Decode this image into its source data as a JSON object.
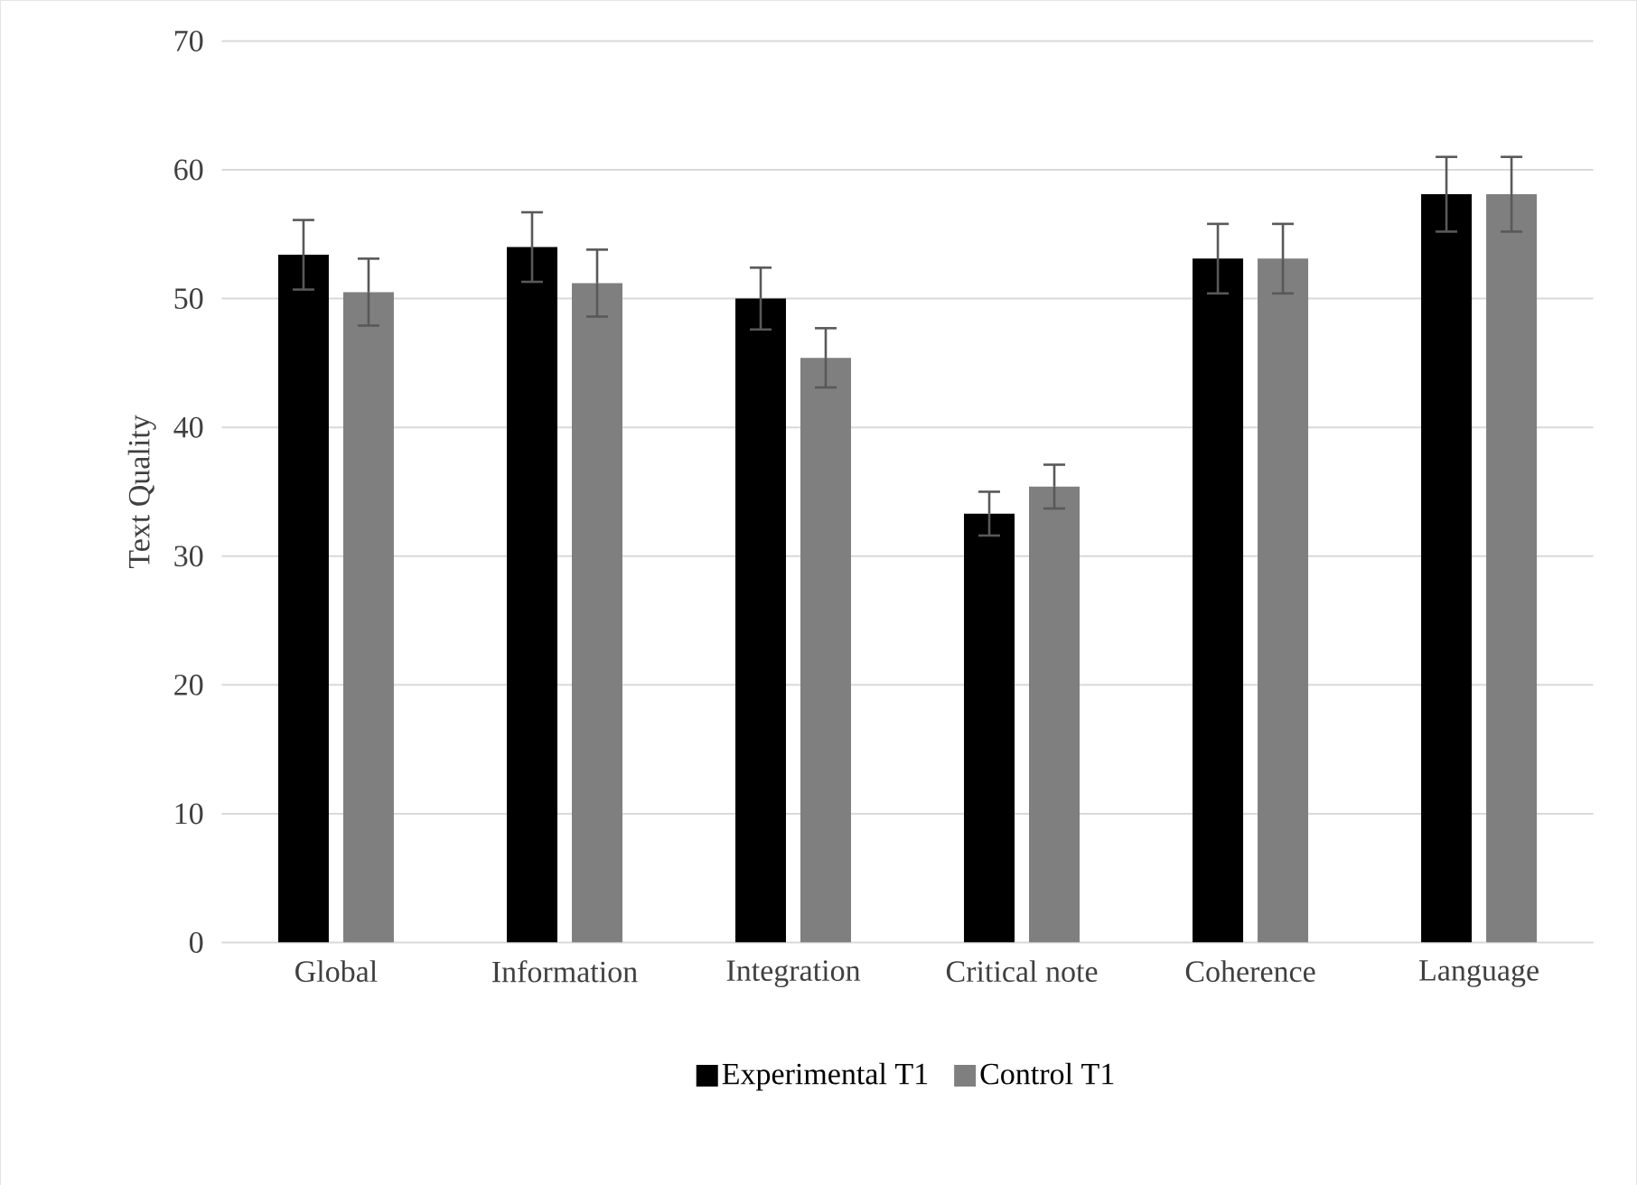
{
  "chart_data": {
    "type": "bar",
    "ylabel": "Text Quality",
    "categories": [
      "Global",
      "Information",
      "Integration",
      "Critical note",
      "Coherence",
      "Language"
    ],
    "series": [
      {
        "name": "Experimental T1",
        "color": "#000000",
        "values": [
          53.4,
          54.0,
          50.0,
          33.3,
          53.1,
          58.1
        ],
        "errors": [
          2.7,
          2.7,
          2.4,
          1.7,
          2.7,
          2.9
        ]
      },
      {
        "name": "Control T1",
        "color": "#7f7f7f",
        "values": [
          50.5,
          51.2,
          45.4,
          35.4,
          53.1,
          58.1
        ],
        "errors": [
          2.6,
          2.6,
          2.3,
          1.7,
          2.7,
          2.9
        ]
      }
    ],
    "ylim": [
      0,
      70
    ],
    "yticks": [
      0,
      10,
      20,
      30,
      40,
      50,
      60,
      70
    ],
    "grid": "y",
    "legend": "bottom"
  }
}
